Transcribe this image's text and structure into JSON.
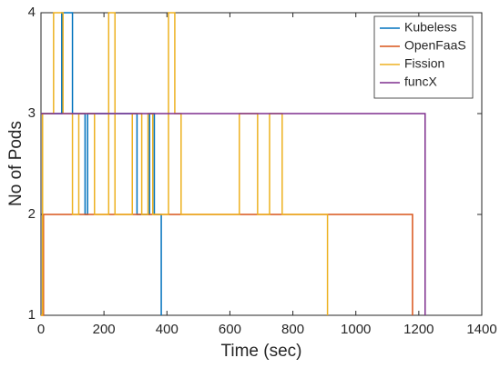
{
  "chart_data": {
    "type": "line",
    "xlabel": "Time (sec)",
    "ylabel": "No of Pods",
    "xlim": [
      0,
      1400
    ],
    "xticks": [
      0,
      200,
      400,
      600,
      800,
      1000,
      1200,
      1400
    ],
    "ylim": [
      1,
      4
    ],
    "yticks": [
      1,
      2,
      3,
      4
    ],
    "legend": "upper right",
    "series": [
      {
        "name": "Kubeless",
        "color": "#0072bd",
        "x": [
          5,
          5,
          66,
          66,
          100,
          100,
          140,
          140,
          148,
          148,
          305,
          305,
          345,
          345,
          360,
          360,
          382,
          382
        ],
        "values": [
          1,
          3,
          3,
          4,
          4,
          3,
          3,
          2,
          2,
          3,
          3,
          2,
          2,
          3,
          3,
          2,
          2,
          1
        ]
      },
      {
        "name": "OpenFaaS",
        "color": "#d95319",
        "x": [
          0,
          8,
          8,
          1180,
          1180
        ],
        "values": [
          1,
          1,
          2,
          2,
          1
        ]
      },
      {
        "name": "Fission",
        "color": "#edb120",
        "x": [
          0,
          5,
          5,
          40,
          40,
          70,
          70,
          100,
          100,
          120,
          120,
          170,
          170,
          215,
          215,
          235,
          235,
          290,
          290,
          320,
          320,
          340,
          340,
          355,
          355,
          405,
          405,
          425,
          425,
          445,
          445,
          480,
          480,
          630,
          630,
          688,
          688,
          726,
          726,
          766,
          766,
          799,
          799,
          910,
          910
        ],
        "values": [
          1,
          1,
          3,
          3,
          4,
          4,
          3,
          3,
          2,
          2,
          3,
          3,
          2,
          2,
          4,
          4,
          2,
          2,
          3,
          3,
          2,
          2,
          3,
          3,
          2,
          2,
          4,
          4,
          3,
          3,
          2,
          2,
          2,
          2,
          3,
          3,
          2,
          2,
          3,
          3,
          2,
          2,
          2,
          2,
          1
        ]
      },
      {
        "name": "funcX",
        "color": "#7e2f8e",
        "x": [
          0,
          1220,
          1220
        ],
        "values": [
          3,
          3,
          1
        ]
      }
    ]
  }
}
